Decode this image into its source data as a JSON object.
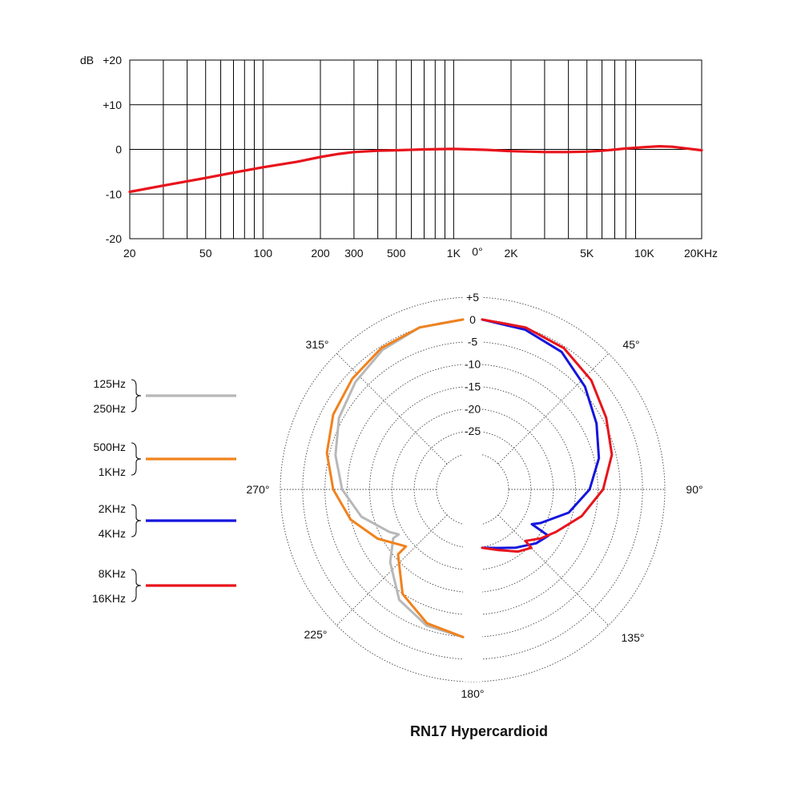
{
  "chart_data": [
    {
      "type": "line",
      "ylabel": "dB",
      "xscale": "log",
      "xlim": [
        20,
        20000
      ],
      "ylim": [
        -20,
        20
      ],
      "grid": true,
      "y_ticks": [
        "+20",
        "+10",
        "0",
        "-10",
        "-20"
      ],
      "x_ticks": [
        {
          "value": 20,
          "label": "20"
        },
        {
          "value": 50,
          "label": "50"
        },
        {
          "value": 100,
          "label": "100"
        },
        {
          "value": 200,
          "label": "200"
        },
        {
          "value": 300,
          "label": "300"
        },
        {
          "value": 500,
          "label": "500"
        },
        {
          "value": 1000,
          "label": "1K"
        },
        {
          "value": 2000,
          "label": "2K"
        },
        {
          "value": 5000,
          "label": "5K"
        },
        {
          "value": 10000,
          "label": "10K"
        },
        {
          "value": 20000,
          "label": "20KHz"
        }
      ],
      "series": [
        {
          "color": "#e8141c",
          "x": [
            20,
            30,
            50,
            70,
            100,
            150,
            200,
            250,
            300,
            400,
            500,
            700,
            1000,
            1500,
            2000,
            3000,
            4000,
            5000,
            6000,
            8000,
            10000,
            12000,
            14000,
            16000,
            20000
          ],
          "y": [
            -9.5,
            -8.1,
            -6.4,
            -5.2,
            -4.0,
            -2.8,
            -1.7,
            -1.0,
            -0.6,
            -0.3,
            -0.2,
            0,
            0.1,
            -0.1,
            -0.4,
            -0.6,
            -0.6,
            -0.5,
            -0.3,
            0.2,
            0.5,
            0.7,
            0.6,
            0.3,
            -0.2
          ]
        }
      ]
    },
    {
      "type": "polar",
      "title": "RN17 Hypercardioid",
      "r_ticks": [
        "+5",
        "0",
        "-5",
        "-10",
        "-15",
        "-20",
        "-25"
      ],
      "r_values": [
        5,
        0,
        -5,
        -10,
        -15,
        -20,
        -25
      ],
      "rlim": [
        -30,
        5
      ],
      "angle_labels": [
        {
          "angle": 0,
          "label": "0°"
        },
        {
          "angle": 45,
          "label": "45°"
        },
        {
          "angle": 90,
          "label": "90°"
        },
        {
          "angle": 135,
          "label": "135°"
        },
        {
          "angle": 180,
          "label": "180°"
        },
        {
          "angle": 225,
          "label": "225°"
        },
        {
          "angle": 270,
          "label": "270°"
        },
        {
          "angle": 315,
          "label": "315°"
        }
      ],
      "series": [
        {
          "name": "125Hz 250Hz",
          "color": "#b8b8b8",
          "side": "left",
          "angles": [
            0,
            15,
            30,
            45,
            60,
            75,
            90,
            105,
            120,
            125,
            125,
            135,
            150,
            165,
            180
          ],
          "values": [
            0,
            -0.5,
            -2,
            -4,
            -6,
            -8.5,
            -11,
            -14.5,
            -19,
            -20.5,
            -19,
            -15,
            -9.5,
            -6.5,
            -5
          ]
        },
        {
          "name": "500Hz 1KHz",
          "color": "#f0821e",
          "side": "left",
          "angles": [
            0,
            15,
            30,
            45,
            60,
            75,
            90,
            105,
            120,
            130,
            135,
            135,
            150,
            165,
            180
          ],
          "values": [
            0,
            -0.5,
            -1.5,
            -3,
            -4.5,
            -6.5,
            -9,
            -12,
            -16,
            -19,
            -20,
            -17.5,
            -11,
            -7,
            -5
          ]
        },
        {
          "name": "2KHz 4KHz",
          "color": "#1515dd",
          "side": "right",
          "angles": [
            0,
            15,
            30,
            45,
            60,
            75,
            90,
            105,
            120,
            125,
            125,
            135,
            150,
            165,
            180
          ],
          "values": [
            0,
            -1,
            -2.5,
            -5.5,
            -8.5,
            -11,
            -14,
            -18,
            -23,
            -24.5,
            -20,
            -21,
            -23,
            -24.5,
            -25
          ]
        },
        {
          "name": "8KHz 16KHz",
          "color": "#e8141c",
          "side": "right",
          "angles": [
            0,
            15,
            30,
            45,
            60,
            75,
            90,
            105,
            120,
            130,
            140,
            140,
            150,
            165,
            180
          ],
          "values": [
            0,
            -0.5,
            -1.5,
            -3.5,
            -6,
            -8,
            -11,
            -15,
            -19,
            -21,
            -23,
            -21,
            -22,
            -24,
            -25
          ]
        }
      ]
    }
  ]
}
